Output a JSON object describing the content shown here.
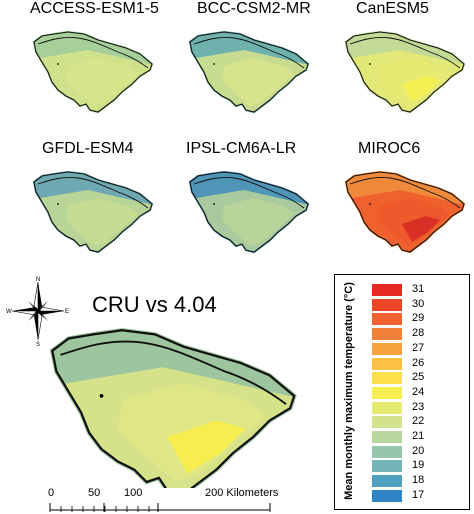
{
  "panels": [
    {
      "title": "ACCESS-ESM1-5",
      "fill": "#d7e48a",
      "edge": "#a6cf9a",
      "hot": null
    },
    {
      "title": "BCC-CSM2-MR",
      "fill": "#d8e48c",
      "edge": "#6fb1ad",
      "hot": null
    },
    {
      "title": "CanESM5",
      "fill": "#e7ea72",
      "edge": "#c3d996",
      "hot": "#f4ef52"
    },
    {
      "title": "GFDL-ESM4",
      "fill": "#c5dc92",
      "edge": "#6ea8b2",
      "hot": null
    },
    {
      "title": "IPSL-CM6A-LR",
      "fill": "#b8d49a",
      "edge": "#4f95b8",
      "hot": null
    },
    {
      "title": "MIROC6",
      "fill": "#ee5a2c",
      "edge": "#f08a3a",
      "hot": "#d83024"
    }
  ],
  "main": {
    "title": "CRU vs 4.04",
    "fill": "#dfe686",
    "edge": "#9ec69e",
    "hot": "#f6ee4e"
  },
  "legend": {
    "title": "Mean monthly maximum temperature (°C)",
    "items": [
      {
        "label": "31",
        "color": "#e52a22"
      },
      {
        "label": "30",
        "color": "#ea4627"
      },
      {
        "label": "29",
        "color": "#ef6330"
      },
      {
        "label": "28",
        "color": "#f28238"
      },
      {
        "label": "27",
        "color": "#f7a13e"
      },
      {
        "label": "26",
        "color": "#fbc143"
      },
      {
        "label": "25",
        "color": "#fde04a"
      },
      {
        "label": "24",
        "color": "#f6ef52"
      },
      {
        "label": "23",
        "color": "#e6ea72"
      },
      {
        "label": "22",
        "color": "#d2e28e"
      },
      {
        "label": "21",
        "color": "#b8d69e"
      },
      {
        "label": "20",
        "color": "#96c7ab"
      },
      {
        "label": "19",
        "color": "#74b4b6"
      },
      {
        "label": "18",
        "color": "#51a0bf"
      },
      {
        "label": "17",
        "color": "#2f84c6"
      }
    ]
  },
  "scale": {
    "labels": [
      "0",
      "50",
      "100",
      "200 Kilometers"
    ]
  },
  "compass": {
    "n": "N",
    "s": "S",
    "e": "E",
    "w": "W"
  }
}
